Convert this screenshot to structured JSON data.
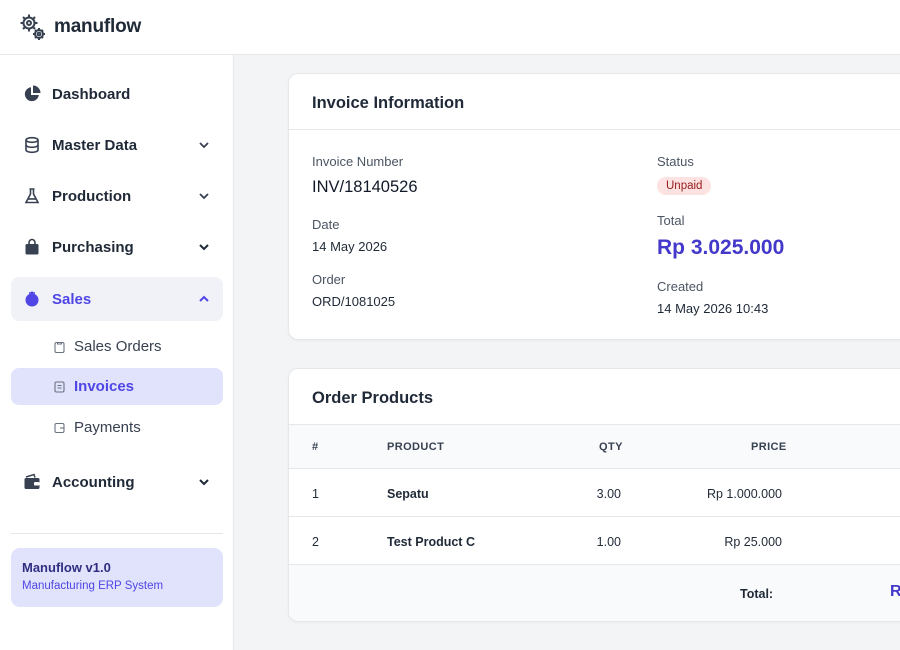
{
  "app": {
    "name": "manuflow"
  },
  "sidebar": {
    "items": [
      {
        "label": "Dashboard",
        "icon": "pie-chart-icon"
      },
      {
        "label": "Master Data",
        "icon": "database-icon"
      },
      {
        "label": "Production",
        "icon": "flask-icon"
      },
      {
        "label": "Purchasing",
        "icon": "shopping-bag-icon"
      },
      {
        "label": "Sales",
        "icon": "sales-icon"
      },
      {
        "label": "Accounting",
        "icon": "wallet-icon"
      }
    ],
    "sales_sub": [
      {
        "label": "Sales Orders",
        "icon": "clipboard-icon"
      },
      {
        "label": "Invoices",
        "icon": "invoice-icon"
      },
      {
        "label": "Payments",
        "icon": "payment-icon"
      }
    ],
    "footer": {
      "title": "Manuflow v1.0",
      "subtitle": "Manufacturing ERP System"
    }
  },
  "invoice_card": {
    "title": "Invoice Information",
    "invoice_number_label": "Invoice Number",
    "invoice_number": "INV/18140526",
    "date_label": "Date",
    "date": "14 May 2026",
    "order_label": "Order",
    "order": "ORD/1081025",
    "status_label": "Status",
    "status": "Unpaid",
    "total_label": "Total",
    "total": "Rp 3.025.000",
    "created_label": "Created",
    "created": "14 May 2026 10:43"
  },
  "products_card": {
    "title": "Order Products",
    "headers": {
      "num": "#",
      "product": "PRODUCT",
      "qty": "QTY",
      "price": "PRICE"
    },
    "rows": [
      {
        "num": "1",
        "product": "Sepatu",
        "qty": "3.00",
        "price": "Rp 1.000.000"
      },
      {
        "num": "2",
        "product": "Test Product C",
        "qty": "1.00",
        "price": "Rp 25.000"
      }
    ],
    "footer_label": "Total:",
    "footer_value_partial": "R"
  },
  "colors": {
    "accent": "#4f46e5",
    "unpaid_bg": "#fde2e2",
    "unpaid_text": "#991b1b"
  }
}
